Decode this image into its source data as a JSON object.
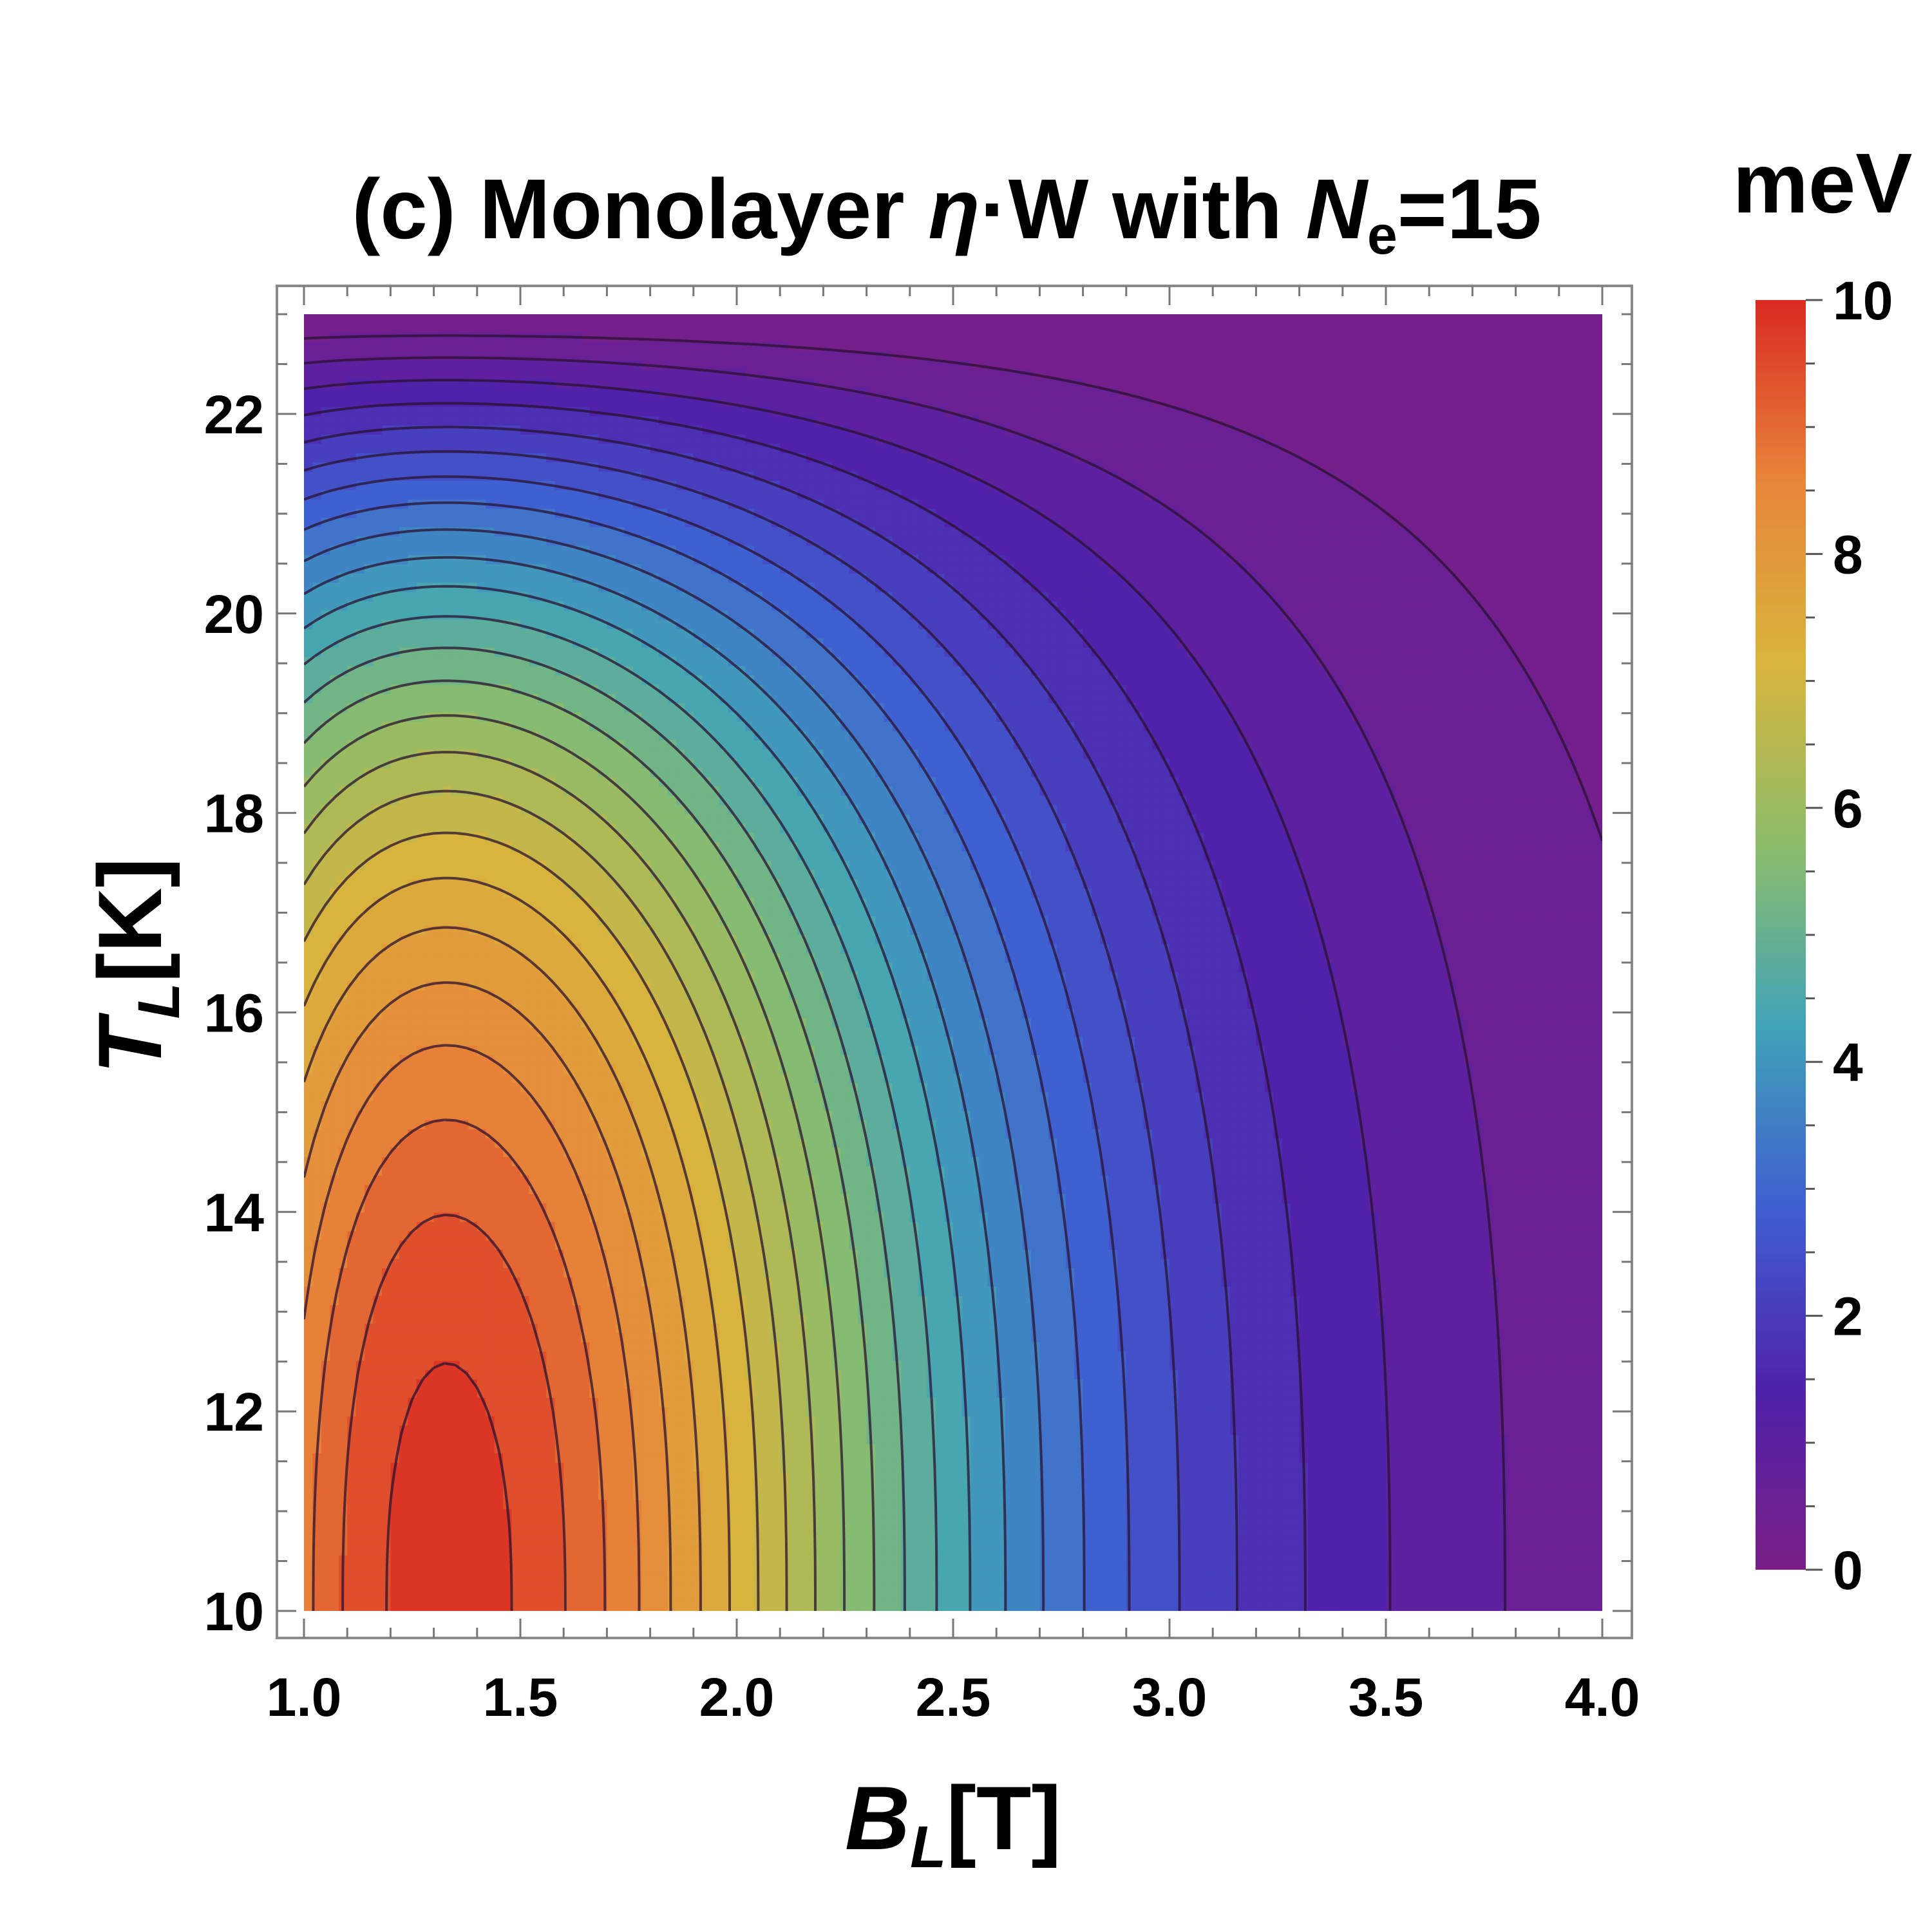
{
  "chart_data": {
    "type": "contour",
    "title": {
      "prefix": "(c) Monolayer ",
      "eta": "η",
      "middle": "·W with ",
      "n": "N",
      "n_sub": "e",
      "suffix": "=15"
    },
    "xlabel": {
      "main": "B",
      "sub": "L",
      "unit": "[T]"
    },
    "ylabel": {
      "main": "T",
      "sub": "L",
      "unit": "[K]"
    },
    "x_range": [
      1.0,
      4.0
    ],
    "y_range": [
      10,
      23
    ],
    "x_ticks": [
      "1.0",
      "1.5",
      "2.0",
      "2.5",
      "3.0",
      "3.5",
      "4.0"
    ],
    "y_ticks": [
      "10",
      "12",
      "14",
      "16",
      "18",
      "20",
      "22"
    ],
    "colorbar": {
      "unit": "meV",
      "range": [
        0,
        10
      ],
      "ticks": [
        "0",
        "2",
        "4",
        "6",
        "8",
        "10"
      ],
      "colors": [
        "#7a1e86",
        "#4f22ab",
        "#3f5fd0",
        "#41a3b8",
        "#8dbd6a",
        "#d9b43d",
        "#e8853a",
        "#d92a22"
      ]
    },
    "peak": {
      "x": 1.33,
      "y": 10.0,
      "value": 9.8
    },
    "levels": 26
  }
}
